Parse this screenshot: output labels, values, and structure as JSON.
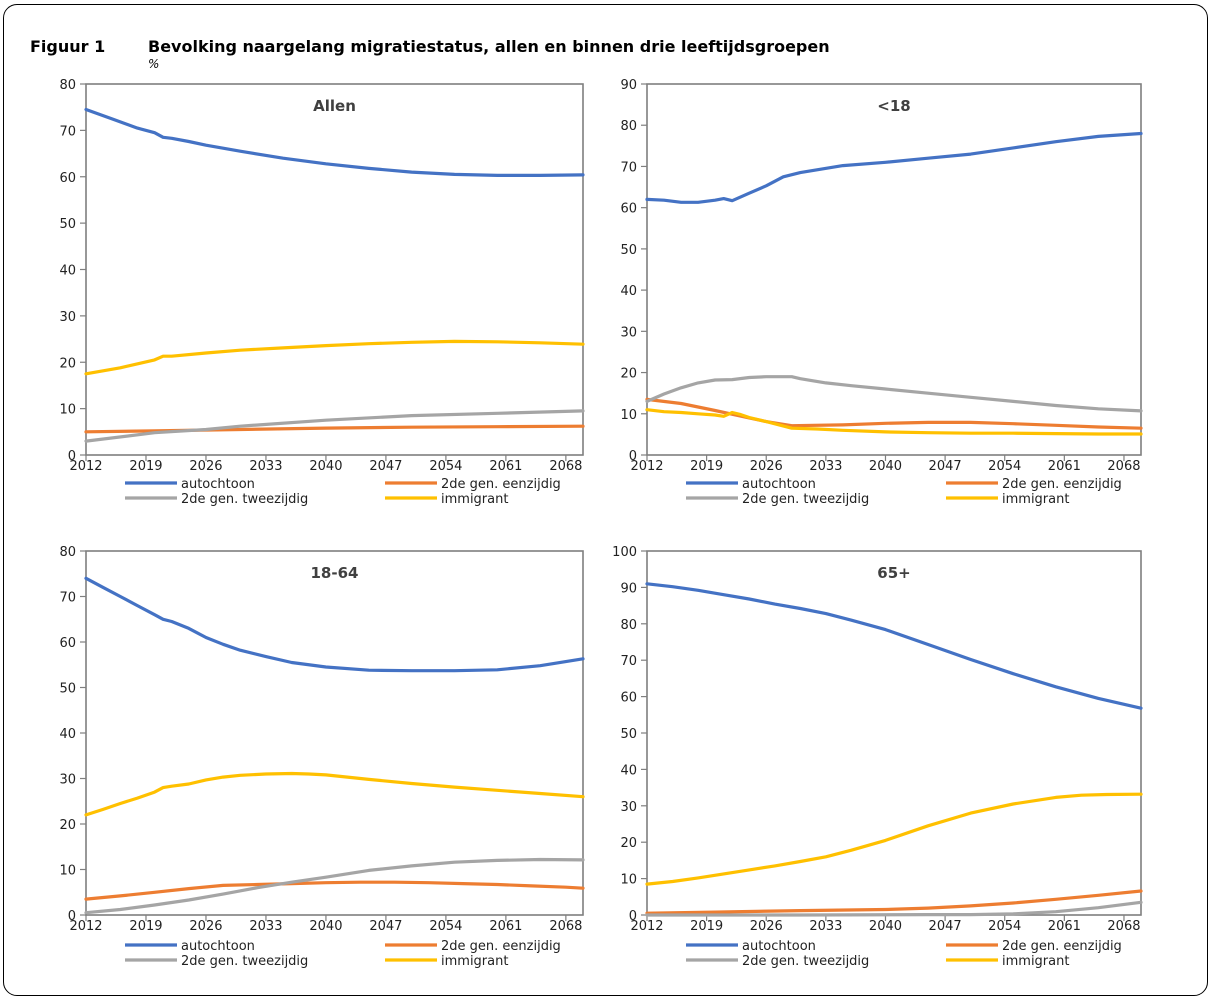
{
  "figure": {
    "label": "Figuur 1",
    "title": "Bevolking naargelang migratiestatus, allen en binnen drie leeftijdsgroepen",
    "unit": "%"
  },
  "legend": {
    "autochtoon": "autochtoon",
    "eenzijdig": "2de gen. eenzijdig",
    "tweezijdig": "2de gen. tweezijdig",
    "immigrant": "immigrant"
  },
  "colors": {
    "autochtoon": "#4472c4",
    "eenzijdig": "#ed7d31",
    "tweezijdig": "#a5a5a5",
    "immigrant": "#ffc000",
    "axis": "#7f7f7f"
  },
  "chart_data": [
    {
      "type": "line",
      "title": "Allen",
      "x_ticks": [
        "2012",
        "2019",
        "2026",
        "2033",
        "2040",
        "2047",
        "2054",
        "2061",
        "2068"
      ],
      "x_range": [
        2012,
        2070
      ],
      "ylim": [
        0,
        80
      ],
      "y_ticks": [
        "0",
        "10",
        "20",
        "30",
        "40",
        "50",
        "60",
        "70",
        "80"
      ],
      "grid": false,
      "legend_position": "bottom",
      "series": [
        {
          "name": "autochtoon",
          "color_key": "autochtoon",
          "x": [
            2012,
            2015,
            2018,
            2020,
            2021,
            2022,
            2024,
            2026,
            2030,
            2035,
            2040,
            2045,
            2050,
            2055,
            2060,
            2065,
            2070
          ],
          "y": [
            74.5,
            72.5,
            70.5,
            69.5,
            68.5,
            68.3,
            67.6,
            66.8,
            65.5,
            64,
            62.8,
            61.8,
            61,
            60.5,
            60.3,
            60.3,
            60.4
          ]
        },
        {
          "name": "2de gen. eenzijdig",
          "color_key": "eenzijdig",
          "x": [
            2012,
            2020,
            2030,
            2040,
            2050,
            2060,
            2070
          ],
          "y": [
            5,
            5.2,
            5.5,
            5.8,
            6,
            6.1,
            6.2
          ]
        },
        {
          "name": "2de gen. tweezijdig",
          "color_key": "tweezijdig",
          "x": [
            2012,
            2020,
            2026,
            2030,
            2040,
            2050,
            2060,
            2070
          ],
          "y": [
            3,
            4.8,
            5.5,
            6.2,
            7.5,
            8.5,
            9,
            9.5
          ]
        },
        {
          "name": "immigrant",
          "color_key": "immigrant",
          "x": [
            2012,
            2016,
            2020,
            2021,
            2022,
            2026,
            2030,
            2035,
            2040,
            2045,
            2050,
            2055,
            2060,
            2065,
            2070
          ],
          "y": [
            17.5,
            18.8,
            20.5,
            21.3,
            21.3,
            22,
            22.6,
            23.1,
            23.6,
            24,
            24.3,
            24.5,
            24.4,
            24.2,
            23.9
          ]
        }
      ]
    },
    {
      "type": "line",
      "title": "<18",
      "x_ticks": [
        "2012",
        "2019",
        "2026",
        "2033",
        "2040",
        "2047",
        "2054",
        "2061",
        "2068"
      ],
      "x_range": [
        2012,
        2070
      ],
      "ylim": [
        0,
        90
      ],
      "y_ticks": [
        "0",
        "10",
        "20",
        "30",
        "40",
        "50",
        "60",
        "70",
        "80",
        "90"
      ],
      "grid": false,
      "legend_position": "bottom",
      "series": [
        {
          "name": "autochtoon",
          "color_key": "autochtoon",
          "x": [
            2012,
            2014,
            2016,
            2018,
            2020,
            2021,
            2022,
            2024,
            2026,
            2028,
            2030,
            2035,
            2040,
            2045,
            2050,
            2055,
            2060,
            2065,
            2070
          ],
          "y": [
            62,
            61.8,
            61.3,
            61.3,
            61.8,
            62.2,
            61.7,
            63.5,
            65.3,
            67.5,
            68.5,
            70.2,
            71,
            72,
            73,
            74.5,
            76,
            77.3,
            78
          ]
        },
        {
          "name": "2de gen. eenzijdig",
          "color_key": "eenzijdig",
          "x": [
            2012,
            2016,
            2020,
            2024,
            2026,
            2029,
            2035,
            2040,
            2045,
            2050,
            2055,
            2060,
            2065,
            2070
          ],
          "y": [
            13.5,
            12.5,
            10.8,
            9,
            8.1,
            7.1,
            7.3,
            7.7,
            7.9,
            7.9,
            7.6,
            7.2,
            6.8,
            6.5
          ]
        },
        {
          "name": "2de gen. tweezijdig",
          "color_key": "tweezijdig",
          "x": [
            2012,
            2014,
            2016,
            2018,
            2020,
            2022,
            2024,
            2026,
            2029,
            2030,
            2033,
            2036,
            2040,
            2045,
            2050,
            2055,
            2060,
            2065,
            2070
          ],
          "y": [
            13,
            14.8,
            16.3,
            17.5,
            18.2,
            18.3,
            18.8,
            19,
            19,
            18.5,
            17.5,
            16.8,
            16,
            15,
            14,
            13,
            12,
            11.2,
            10.7
          ]
        },
        {
          "name": "immigrant",
          "color_key": "immigrant",
          "x": [
            2012,
            2014,
            2016,
            2018,
            2020,
            2021,
            2022,
            2023,
            2024,
            2026,
            2029,
            2032,
            2035,
            2040,
            2045,
            2050,
            2055,
            2060,
            2065,
            2070
          ],
          "y": [
            11,
            10.5,
            10.3,
            10,
            9.7,
            9.4,
            10.3,
            9.8,
            9.1,
            8.1,
            6.5,
            6.3,
            6,
            5.6,
            5.4,
            5.3,
            5.3,
            5.2,
            5.1,
            5.1
          ]
        }
      ]
    },
    {
      "type": "line",
      "title": "18-64",
      "x_ticks": [
        "2012",
        "2019",
        "2026",
        "2033",
        "2040",
        "2047",
        "2054",
        "2061",
        "2068"
      ],
      "x_range": [
        2012,
        2070
      ],
      "ylim": [
        0,
        80
      ],
      "y_ticks": [
        "0",
        "10",
        "20",
        "30",
        "40",
        "50",
        "60",
        "70",
        "80"
      ],
      "grid": false,
      "legend_position": "bottom",
      "series": [
        {
          "name": "autochtoon",
          "color_key": "autochtoon",
          "x": [
            2012,
            2014,
            2016,
            2018,
            2020,
            2021,
            2022,
            2024,
            2026,
            2028,
            2030,
            2033,
            2036,
            2040,
            2045,
            2050,
            2055,
            2060,
            2065,
            2070
          ],
          "y": [
            74,
            72,
            70,
            68,
            66,
            65,
            64.5,
            63,
            61,
            59.5,
            58.2,
            56.8,
            55.5,
            54.5,
            53.8,
            53.7,
            53.7,
            53.9,
            54.8,
            56.3
          ]
        },
        {
          "name": "2de gen. eenzijdig",
          "color_key": "eenzijdig",
          "x": [
            2012,
            2016,
            2020,
            2024,
            2028,
            2032,
            2036,
            2040,
            2044,
            2048,
            2052,
            2056,
            2060,
            2064,
            2068,
            2070
          ],
          "y": [
            3.5,
            4.2,
            5,
            5.8,
            6.5,
            6.7,
            6.9,
            7.1,
            7.2,
            7.2,
            7.1,
            6.9,
            6.7,
            6.4,
            6.1,
            5.9
          ]
        },
        {
          "name": "2de gen. tweezijdig",
          "color_key": "tweezijdig",
          "x": [
            2012,
            2016,
            2020,
            2024,
            2028,
            2032,
            2036,
            2040,
            2045,
            2050,
            2055,
            2060,
            2065,
            2070
          ],
          "y": [
            0.5,
            1.2,
            2.2,
            3.3,
            4.6,
            6,
            7.2,
            8.3,
            9.8,
            10.8,
            11.6,
            12,
            12.2,
            12.1
          ]
        },
        {
          "name": "immigrant",
          "color_key": "immigrant",
          "x": [
            2012,
            2014,
            2016,
            2018,
            2020,
            2021,
            2022,
            2024,
            2026,
            2028,
            2030,
            2033,
            2036,
            2038,
            2040,
            2045,
            2050,
            2055,
            2060,
            2065,
            2070
          ],
          "y": [
            22,
            23.2,
            24.5,
            25.7,
            27,
            28,
            28.3,
            28.8,
            29.7,
            30.3,
            30.7,
            31,
            31.1,
            31,
            30.8,
            29.8,
            28.9,
            28.1,
            27.4,
            26.7,
            26
          ]
        }
      ]
    },
    {
      "type": "line",
      "title": "65+",
      "x_ticks": [
        "2012",
        "2019",
        "2026",
        "2033",
        "2040",
        "2047",
        "2054",
        "2061",
        "2068"
      ],
      "x_range": [
        2012,
        2070
      ],
      "ylim": [
        0,
        100
      ],
      "y_ticks": [
        "0",
        "10",
        "20",
        "30",
        "40",
        "50",
        "60",
        "70",
        "80",
        "90",
        "100"
      ],
      "grid": false,
      "legend_position": "bottom",
      "series": [
        {
          "name": "autochtoon",
          "color_key": "autochtoon",
          "x": [
            2012,
            2015,
            2018,
            2021,
            2024,
            2027,
            2030,
            2033,
            2036,
            2040,
            2045,
            2050,
            2055,
            2060,
            2065,
            2070
          ],
          "y": [
            91,
            90.2,
            89.2,
            88,
            86.8,
            85.4,
            84.2,
            82.8,
            81,
            78.4,
            74.3,
            70.2,
            66.3,
            62.7,
            59.5,
            56.8
          ]
        },
        {
          "name": "2de gen. eenzijdig",
          "color_key": "eenzijdig",
          "x": [
            2012,
            2020,
            2030,
            2040,
            2045,
            2050,
            2055,
            2060,
            2065,
            2070
          ],
          "y": [
            0.5,
            0.8,
            1.2,
            1.5,
            1.9,
            2.5,
            3.3,
            4.3,
            5.4,
            6.6
          ]
        },
        {
          "name": "2de gen. tweezijdig",
          "color_key": "tweezijdig",
          "x": [
            2012,
            2030,
            2045,
            2050,
            2055,
            2060,
            2065,
            2070
          ],
          "y": [
            0,
            0,
            0.1,
            0.1,
            0.3,
            0.9,
            2,
            3.5
          ]
        },
        {
          "name": "immigrant",
          "color_key": "immigrant",
          "x": [
            2012,
            2015,
            2018,
            2021,
            2024,
            2027,
            2030,
            2033,
            2036,
            2040,
            2045,
            2050,
            2055,
            2060,
            2063,
            2066,
            2070
          ],
          "y": [
            8.5,
            9.2,
            10.2,
            11.3,
            12.4,
            13.5,
            14.7,
            16,
            17.8,
            20.5,
            24.5,
            28,
            30.5,
            32.3,
            32.9,
            33.1,
            33.2
          ]
        }
      ]
    }
  ]
}
